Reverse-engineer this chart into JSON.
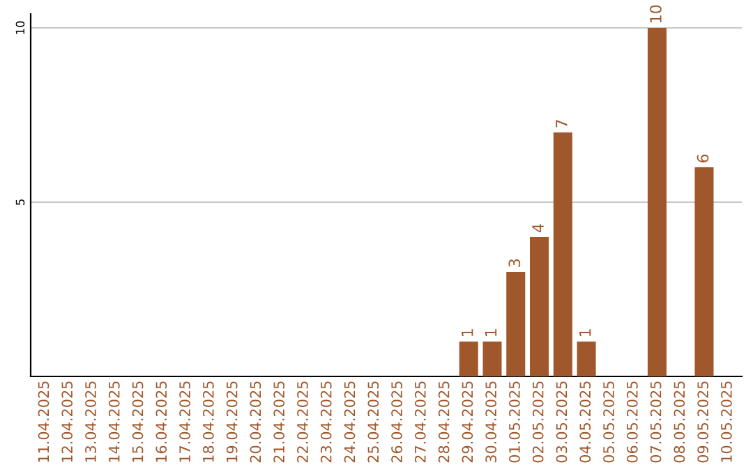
{
  "chart_data": {
    "type": "bar",
    "categories": [
      "11.04.2025",
      "12.04.2025",
      "13.04.2025",
      "14.04.2025",
      "15.04.2025",
      "16.04.2025",
      "17.04.2025",
      "18.04.2025",
      "19.04.2025",
      "20.04.2025",
      "21.04.2025",
      "22.04.2025",
      "23.04.2025",
      "24.04.2025",
      "25.04.2025",
      "26.04.2025",
      "27.04.2025",
      "28.04.2025",
      "29.04.2025",
      "30.04.2025",
      "01.05.2025",
      "02.05.2025",
      "03.05.2025",
      "04.05.2025",
      "05.05.2025",
      "06.05.2025",
      "07.05.2025",
      "08.05.2025",
      "09.05.2025",
      "10.05.2025"
    ],
    "values": [
      0,
      0,
      0,
      0,
      0,
      0,
      0,
      0,
      0,
      0,
      0,
      0,
      0,
      0,
      0,
      0,
      0,
      0,
      1,
      1,
      3,
      4,
      7,
      1,
      0,
      0,
      10,
      0,
      6,
      0
    ],
    "value_labels": [
      null,
      null,
      null,
      null,
      null,
      null,
      null,
      null,
      null,
      null,
      null,
      null,
      null,
      null,
      null,
      null,
      null,
      null,
      "1",
      "1",
      "3",
      "4",
      "7",
      "1",
      null,
      null,
      "10",
      null,
      "6",
      null
    ],
    "color": "#a0572b",
    "ylim": [
      0,
      10.4
    ],
    "yticks": [
      5,
      10
    ],
    "grid": "y",
    "legend": false
  }
}
